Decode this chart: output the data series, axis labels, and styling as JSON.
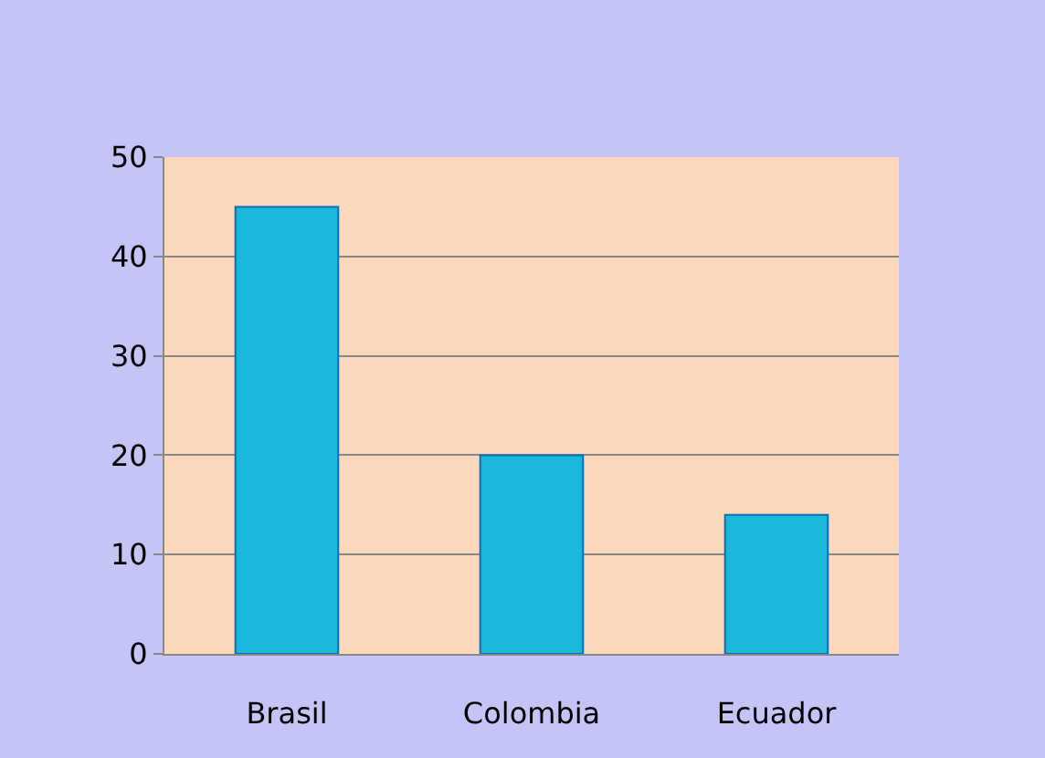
{
  "chart_data": {
    "type": "bar",
    "categories": [
      "Brasil",
      "Colombia",
      "Ecuador"
    ],
    "values": [
      45,
      20,
      14
    ],
    "color": "#1cb8dc",
    "ylim": [
      0,
      50
    ],
    "yticks": [
      0,
      10,
      20,
      30,
      40,
      50
    ],
    "grid": "y"
  }
}
